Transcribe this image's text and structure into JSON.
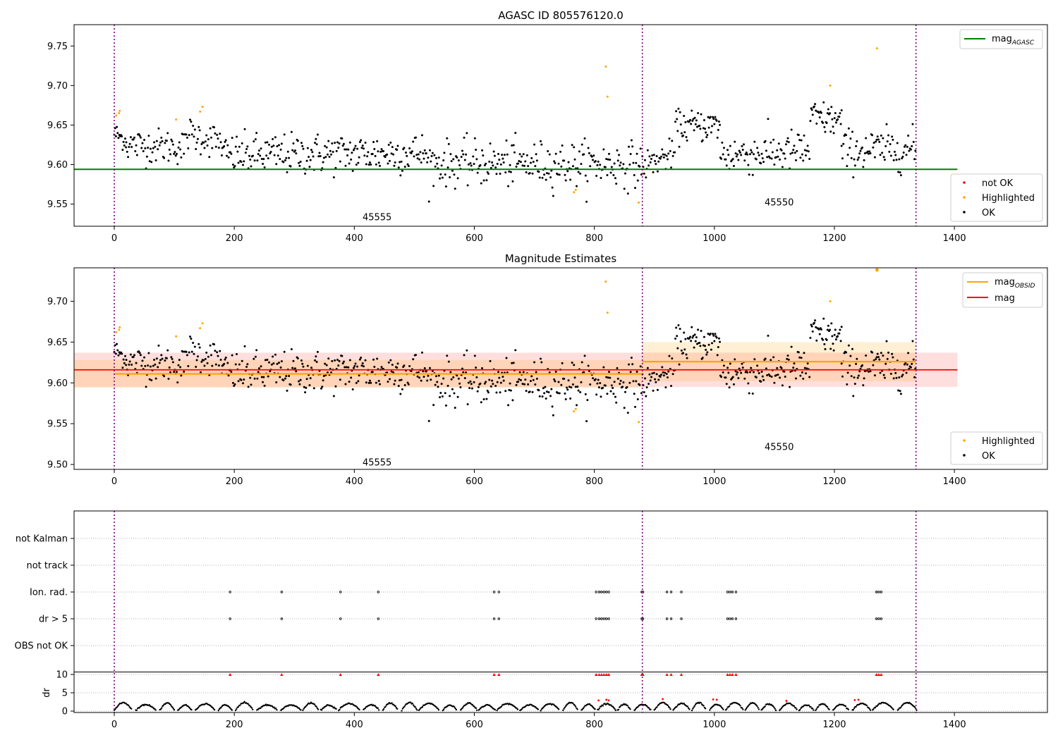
{
  "figure": {
    "title_top": "AGASC ID 805576120.0",
    "title_mid": "Magnitude Estimates"
  },
  "colors": {
    "ok": "#000000",
    "highlighted": "#ffa500",
    "not_ok": "#ff0000",
    "mag_agasc": "#008000",
    "mag_obsid": "#ffa500",
    "mag": "#ff0000",
    "obs_boundary": "#800080"
  },
  "obsids": [
    {
      "label": "45555",
      "start": 0,
      "end": 880
    },
    {
      "label": "45550",
      "start": 880,
      "end": 1336
    }
  ],
  "legend_top": {
    "line": "mag",
    "line_sub": "AGASC",
    "points": [
      "not OK",
      "Highlighted",
      "OK"
    ]
  },
  "legend_mid": {
    "lines": [
      {
        "name": "mag",
        "sub": "OBSID"
      },
      {
        "name": "mag",
        "sub": ""
      }
    ],
    "points": [
      "Highlighted",
      "OK"
    ]
  },
  "flags_panel": {
    "categories": [
      "not Kalman",
      "not track",
      "Ion. rad.",
      "dr > 5",
      "OBS not OK"
    ],
    "flag_times": [
      193,
      279,
      377,
      440,
      633,
      641,
      803,
      808,
      812,
      816,
      820,
      824,
      879,
      881,
      921,
      928,
      945,
      1022,
      1026,
      1030,
      1036,
      1270,
      1274,
      1278
    ],
    "dr_ylabel": "dr",
    "dr_ticks": [
      0,
      5,
      10
    ]
  },
  "chart_data": [
    {
      "type": "scatter",
      "title": "AGASC ID 805576120.0",
      "xlim": [
        -67,
        1555
      ],
      "ylim": [
        9.522,
        9.777
      ],
      "xticks": [
        0,
        200,
        400,
        600,
        800,
        1000,
        1200,
        1400
      ],
      "yticks": [
        9.55,
        9.6,
        9.65,
        9.7,
        9.75
      ],
      "mag_agasc": 9.594,
      "mag_agasc_xrange": [
        -67,
        1405
      ],
      "series": [
        {
          "name": "Highlighted",
          "points": [
            [
              3,
              9.662
            ],
            [
              8,
              9.665
            ],
            [
              9,
              9.668
            ],
            [
              103,
              9.657
            ],
            [
              143,
              9.667
            ],
            [
              147,
              9.673
            ],
            [
              766,
              9.565
            ],
            [
              769,
              9.568
            ],
            [
              819,
              9.724
            ],
            [
              822,
              9.686
            ],
            [
              874,
              9.552
            ],
            [
              1193,
              9.7
            ],
            [
              1271,
              9.747
            ]
          ]
        },
        {
          "name": "OK",
          "segments": [
            {
              "x0": 0,
              "x1": 20,
              "y0": 9.64,
              "y1": 9.63,
              "sd": 0.007,
              "step": 1.4
            },
            {
              "x0": 20,
              "x1": 120,
              "y0": 9.625,
              "y1": 9.622,
              "sd": 0.011,
              "step": 1.5
            },
            {
              "x0": 120,
              "x1": 180,
              "y0": 9.64,
              "y1": 9.628,
              "sd": 0.011,
              "step": 1.6
            },
            {
              "x0": 180,
              "x1": 520,
              "y0": 9.612,
              "y1": 9.615,
              "sd": 0.013,
              "step": 1.5
            },
            {
              "x0": 520,
              "x1": 880,
              "y0": 9.602,
              "y1": 9.6,
              "sd": 0.014,
              "step": 1.5
            },
            {
              "x0": 880,
              "x1": 935,
              "y0": 9.598,
              "y1": 9.615,
              "sd": 0.009,
              "step": 1.5
            },
            {
              "x0": 935,
              "x1": 1010,
              "y0": 9.648,
              "y1": 9.65,
              "sd": 0.01,
              "step": 1.3
            },
            {
              "x0": 1010,
              "x1": 1160,
              "y0": 9.612,
              "y1": 9.618,
              "sd": 0.013,
              "step": 1.5
            },
            {
              "x0": 1160,
              "x1": 1212,
              "y0": 9.66,
              "y1": 9.655,
              "sd": 0.011,
              "step": 1.3
            },
            {
              "x0": 1212,
              "x1": 1336,
              "y0": 9.618,
              "y1": 9.62,
              "sd": 0.013,
              "step": 1.5
            }
          ]
        }
      ]
    },
    {
      "type": "scatter",
      "title": "Magnitude Estimates",
      "xlim": [
        -67,
        1555
      ],
      "ylim": [
        9.494,
        9.741
      ],
      "xticks": [
        0,
        200,
        400,
        600,
        800,
        1000,
        1200,
        1400
      ],
      "yticks": [
        9.5,
        9.55,
        9.6,
        9.65,
        9.7
      ],
      "mag": {
        "value": 9.616,
        "sigma": 0.021,
        "xrange": [
          -67,
          1405
        ]
      },
      "mag_obsid": [
        {
          "obsid": "45555",
          "value": 9.611,
          "sigma": 0.017,
          "xrange": [
            -67,
            880
          ]
        },
        {
          "obsid": "45550",
          "value": 9.626,
          "sigma": 0.024,
          "xrange": [
            880,
            1336
          ]
        }
      ]
    },
    {
      "type": "scatter",
      "title": "",
      "ylabel": "dr",
      "xlim": [
        -67,
        1555
      ],
      "ylim": [
        -0.5,
        11
      ],
      "xticks": [
        0,
        200,
        400,
        600,
        800,
        1000,
        1200,
        1400
      ],
      "dr_not_ok": [
        [
          807,
          2.9
        ],
        [
          820,
          3.1
        ],
        [
          824,
          2.9
        ],
        [
          914,
          3.3
        ],
        [
          998,
          3.2
        ],
        [
          1004,
          3.1
        ],
        [
          1120,
          2.8
        ],
        [
          1234,
          3.0
        ],
        [
          1240,
          3.1
        ]
      ],
      "dr_flag_level": 10
    }
  ]
}
